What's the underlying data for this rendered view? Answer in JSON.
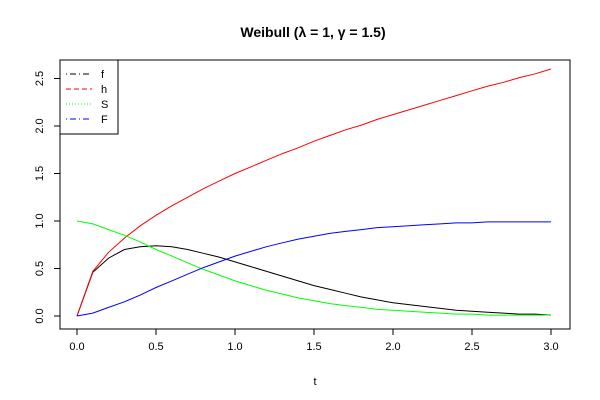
{
  "chart_data": {
    "type": "line",
    "title": "Weibull (λ = 1, γ = 1.5)",
    "xlabel": "t",
    "ylabel": "",
    "xlim": [
      0,
      3
    ],
    "ylim": [
      0,
      2.6
    ],
    "xticks": [
      "0.0",
      "0.5",
      "1.0",
      "1.5",
      "2.0",
      "2.5",
      "3.0"
    ],
    "yticks": [
      "0.0",
      "0.5",
      "1.0",
      "1.5",
      "2.0",
      "2.5"
    ],
    "grid": false,
    "legend": "top-left",
    "x": [
      0.0,
      0.1,
      0.2,
      0.3,
      0.4,
      0.5,
      0.6,
      0.7,
      0.8,
      0.9,
      1.0,
      1.1,
      1.2,
      1.3,
      1.4,
      1.5,
      1.6,
      1.7,
      1.8,
      1.9,
      2.0,
      2.1,
      2.2,
      2.3,
      2.4,
      2.5,
      2.6,
      2.7,
      2.8,
      2.9,
      3.0
    ],
    "series": [
      {
        "name": "f",
        "color": "#000000",
        "dash": "dotdash",
        "values": [
          0.0,
          0.46,
          0.61,
          0.7,
          0.73,
          0.74,
          0.73,
          0.7,
          0.66,
          0.62,
          0.57,
          0.52,
          0.47,
          0.42,
          0.37,
          0.32,
          0.28,
          0.24,
          0.2,
          0.17,
          0.14,
          0.12,
          0.1,
          0.08,
          0.06,
          0.05,
          0.04,
          0.03,
          0.02,
          0.02,
          0.01
        ]
      },
      {
        "name": "h",
        "color": "#ff0000",
        "dash": "dashed",
        "values": [
          0.0,
          0.47,
          0.67,
          0.82,
          0.95,
          1.06,
          1.16,
          1.25,
          1.34,
          1.42,
          1.5,
          1.57,
          1.64,
          1.71,
          1.77,
          1.84,
          1.9,
          1.96,
          2.01,
          2.07,
          2.12,
          2.17,
          2.22,
          2.27,
          2.32,
          2.37,
          2.42,
          2.46,
          2.51,
          2.55,
          2.6
        ]
      },
      {
        "name": "S",
        "color": "#00ff00",
        "dash": "dotted",
        "values": [
          1.0,
          0.97,
          0.91,
          0.85,
          0.78,
          0.7,
          0.63,
          0.56,
          0.49,
          0.43,
          0.37,
          0.32,
          0.27,
          0.23,
          0.19,
          0.16,
          0.13,
          0.11,
          0.09,
          0.07,
          0.06,
          0.05,
          0.04,
          0.03,
          0.02,
          0.02,
          0.01,
          0.01,
          0.01,
          0.01,
          0.01
        ]
      },
      {
        "name": "F",
        "color": "#0000ff",
        "dash": "dotdash",
        "values": [
          0.0,
          0.03,
          0.09,
          0.15,
          0.22,
          0.3,
          0.37,
          0.44,
          0.51,
          0.57,
          0.63,
          0.68,
          0.73,
          0.77,
          0.81,
          0.84,
          0.87,
          0.89,
          0.91,
          0.93,
          0.94,
          0.95,
          0.96,
          0.97,
          0.98,
          0.98,
          0.99,
          0.99,
          0.99,
          0.99,
          0.99
        ]
      }
    ]
  }
}
